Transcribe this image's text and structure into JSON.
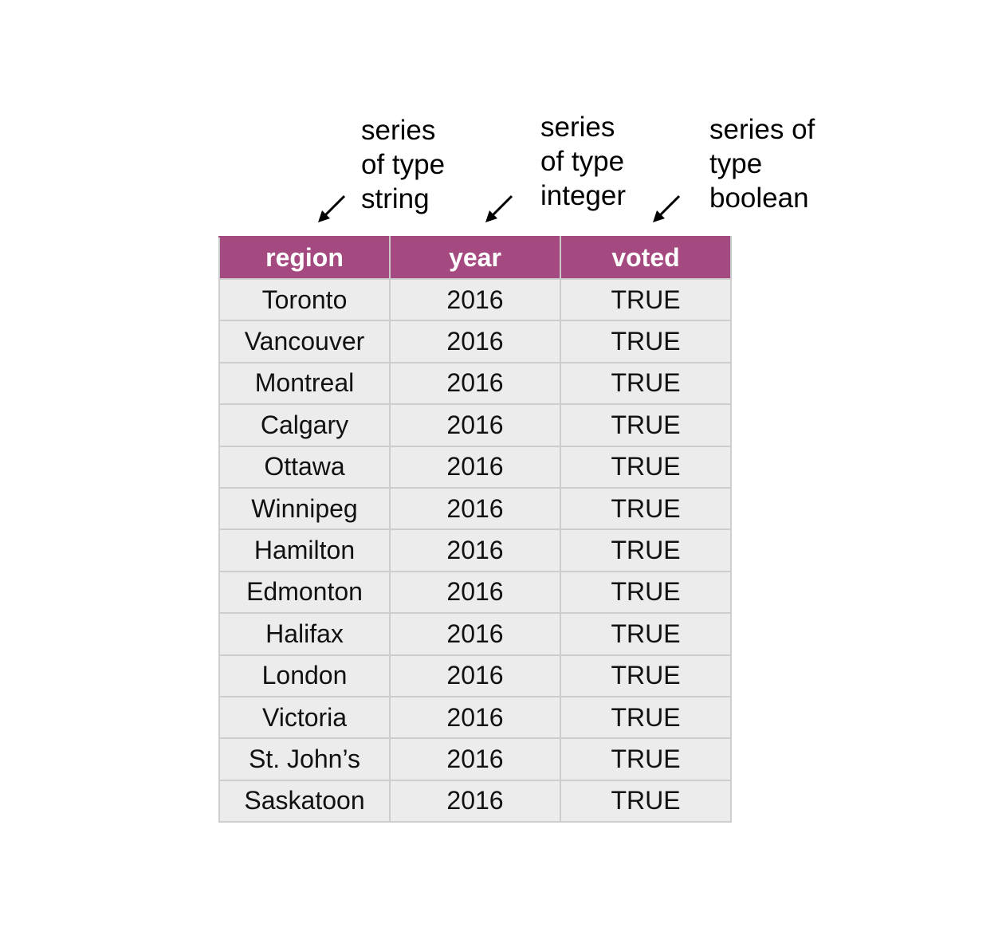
{
  "annotations": [
    {
      "lines": [
        "series",
        "of type",
        "string"
      ]
    },
    {
      "lines": [
        "series",
        "of type",
        "integer"
      ]
    },
    {
      "lines": [
        "series of",
        "type",
        "boolean"
      ]
    }
  ],
  "table": {
    "header_color": "#a54a80",
    "headers": [
      "region",
      "year",
      "voted"
    ],
    "rows": [
      [
        "Toronto",
        "2016",
        "TRUE"
      ],
      [
        "Vancouver",
        "2016",
        "TRUE"
      ],
      [
        "Montreal",
        "2016",
        "TRUE"
      ],
      [
        "Calgary",
        "2016",
        "TRUE"
      ],
      [
        "Ottawa",
        "2016",
        "TRUE"
      ],
      [
        "Winnipeg",
        "2016",
        "TRUE"
      ],
      [
        "Hamilton",
        "2016",
        "TRUE"
      ],
      [
        "Edmonton",
        "2016",
        "TRUE"
      ],
      [
        "Halifax",
        "2016",
        "TRUE"
      ],
      [
        "London",
        "2016",
        "TRUE"
      ],
      [
        "Victoria",
        "2016",
        "TRUE"
      ],
      [
        "St. John’s",
        "2016",
        "TRUE"
      ],
      [
        "Saskatoon",
        "2016",
        "TRUE"
      ]
    ]
  }
}
